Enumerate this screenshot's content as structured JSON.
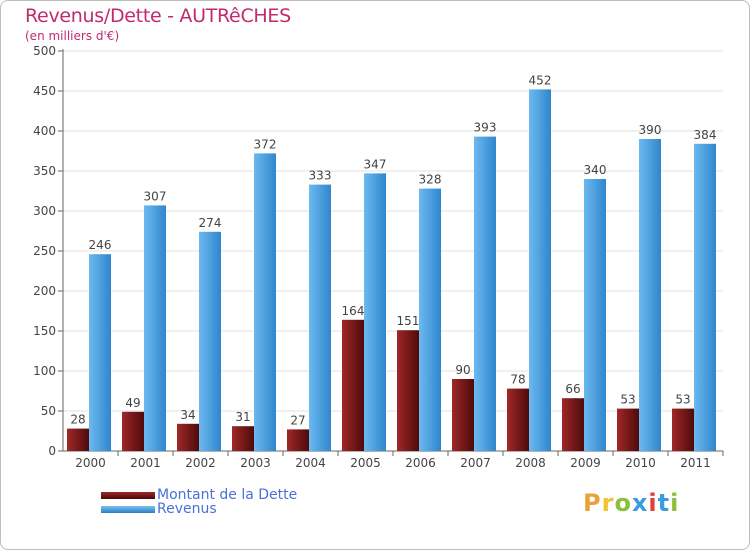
{
  "chart_data": {
    "type": "bar",
    "title": "Revenus/Dette - AUTRêCHES",
    "subtitle": "(en milliers d'€)",
    "categories": [
      "2000",
      "2001",
      "2002",
      "2003",
      "2004",
      "2005",
      "2006",
      "2007",
      "2008",
      "2009",
      "2010",
      "2011"
    ],
    "series": [
      {
        "name": "Montant de la Dette",
        "color": "#7a1a1a",
        "values": [
          28,
          49,
          34,
          31,
          27,
          164,
          151,
          90,
          78,
          66,
          53,
          53
        ]
      },
      {
        "name": "Revenus",
        "color": "#3d97dc",
        "values": [
          246,
          307,
          274,
          372,
          333,
          347,
          328,
          393,
          452,
          340,
          390,
          384
        ]
      }
    ],
    "ylim": [
      0,
      500
    ],
    "yticks": [
      0,
      50,
      100,
      150,
      200,
      250,
      300,
      350,
      400,
      450,
      500
    ],
    "grid": true,
    "legend": "bottom-left"
  },
  "brand": {
    "logo_text": "Proxiti",
    "logo_letters": [
      "P",
      "r",
      "o",
      "x",
      "i",
      "t",
      "i"
    ]
  }
}
